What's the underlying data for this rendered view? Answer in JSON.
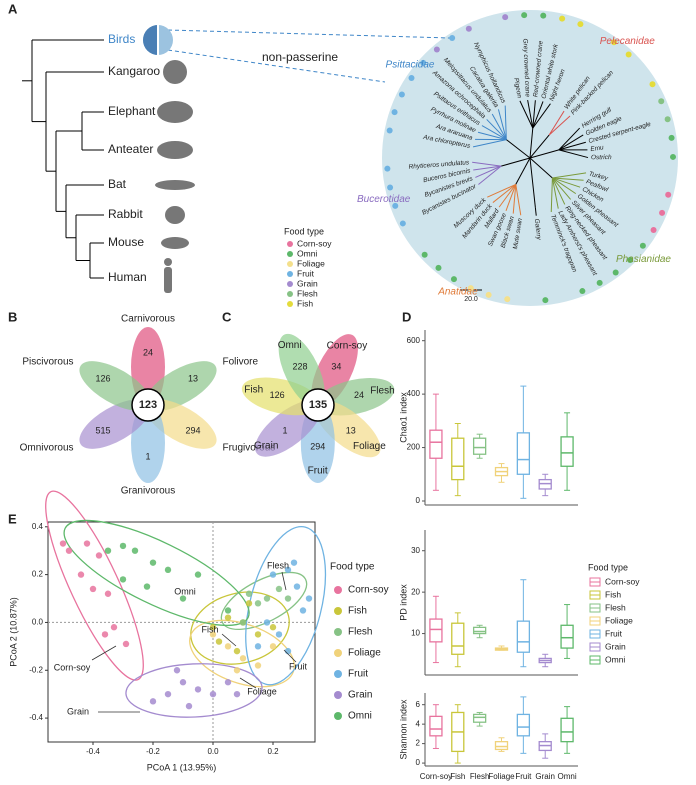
{
  "panel_labels": [
    "A",
    "B",
    "C",
    "D",
    "E"
  ],
  "tree": {
    "taxa": [
      "Birds",
      "Kangaroo",
      "Elephant",
      "Anteater",
      "Bat",
      "Rabbit",
      "Mouse",
      "Human"
    ],
    "callout": "non-passerine",
    "scale": "20.0",
    "legend": {
      "title": "Food type",
      "items": [
        {
          "label": "Corn-soy",
          "color": "#e8739e"
        },
        {
          "label": "Omni",
          "color": "#5db86a"
        },
        {
          "label": "Foliage",
          "color": "#f4e08c"
        },
        {
          "label": "Fruit",
          "color": "#6fb3e2"
        },
        {
          "label": "Grain",
          "color": "#a48bcf"
        },
        {
          "label": "Flesh",
          "color": "#86c285"
        },
        {
          "label": "Fish",
          "color": "#e4dc3c"
        }
      ]
    },
    "groups": [
      {
        "leaves": [
          {
            "name": "Pigeon",
            "food": "Grain"
          },
          {
            "name": "Grey crowned crane",
            "food": "Omni"
          },
          {
            "name": "Red-crowned crane",
            "food": "Omni"
          },
          {
            "name": "Oriental white stork",
            "food": "Fish"
          },
          {
            "name": "Night heron",
            "food": "Fish"
          }
        ]
      },
      {
        "label": "Pelecanidae",
        "color": "#d9534f",
        "leaves": [
          {
            "name": "White pelican",
            "food": "Fish"
          },
          {
            "name": "Pink-backed pelican",
            "food": "Fish"
          }
        ]
      },
      {
        "leaves": [
          {
            "name": "Herring gull",
            "food": "Fish"
          },
          {
            "name": "Golden eagle",
            "food": "Flesh"
          },
          {
            "name": "Crested serpent-eagle",
            "food": "Flesh"
          },
          {
            "name": "Emu",
            "food": "Omni"
          },
          {
            "name": "Ostrich",
            "food": "Omni"
          }
        ]
      },
      {
        "label": "Phasianidae",
        "color": "#7a9a3a",
        "leaves": [
          {
            "name": "Turkey",
            "food": "Corn-soy"
          },
          {
            "name": "Peafowl",
            "food": "Corn-soy"
          },
          {
            "name": "Chicken",
            "food": "Corn-soy"
          },
          {
            "name": "Golden pheasant",
            "food": "Omni"
          },
          {
            "name": "Silver pheasant",
            "food": "Omni"
          },
          {
            "name": "Ring-necked pheasant",
            "food": "Omni"
          },
          {
            "name": "Lady Amherst's pheasant",
            "food": "Omni"
          },
          {
            "name": "Temminck's tragopan",
            "food": "Omni"
          }
        ]
      },
      {
        "leaves": [
          {
            "name": "Galerry",
            "food": "Omni"
          }
        ]
      },
      {
        "label": "Anatidae",
        "color": "#e07b39",
        "leaves": [
          {
            "name": "Mute swan",
            "food": "Foliage"
          },
          {
            "name": "Black swan",
            "food": "Foliage"
          },
          {
            "name": "Swan goose",
            "food": "Foliage"
          },
          {
            "name": "Mallard",
            "food": "Omni"
          },
          {
            "name": "Mandarin duck",
            "food": "Omni"
          },
          {
            "name": "Muscovy duck",
            "food": "Omni"
          }
        ]
      },
      {
        "label": "Bucerotidae",
        "color": "#8a6cc0",
        "leaves": [
          {
            "name": "Bycanistes bucinator",
            "food": "Fruit"
          },
          {
            "name": "Bycanistes brevis",
            "food": "Fruit"
          },
          {
            "name": "Buceros bicornis",
            "food": "Fruit"
          },
          {
            "name": "Rhyticeros undulatus",
            "food": "Fruit"
          }
        ]
      },
      {
        "label": "Psittacidae",
        "color": "#3f86c8",
        "leaves": [
          {
            "name": "Ara chloropterus",
            "food": "Fruit"
          },
          {
            "name": "Ara araruana",
            "food": "Fruit"
          },
          {
            "name": "Pyrrhura molinae",
            "food": "Fruit"
          },
          {
            "name": "Psittacus erithacus",
            "food": "Fruit"
          },
          {
            "name": "Amazona ochrocephala",
            "food": "Fruit"
          },
          {
            "name": "Melopsittacus undulatus",
            "food": "Grain"
          },
          {
            "name": "Cacatua galerita",
            "food": "Fruit"
          },
          {
            "name": "Nymphicus hollandicus",
            "food": "Grain"
          }
        ]
      }
    ]
  },
  "venn_b": {
    "center": 123,
    "petals": [
      {
        "label": "Carnivorous",
        "value": 24,
        "color": "#e0507e"
      },
      {
        "label": "Folivore",
        "value": 13,
        "color": "#8cc48a"
      },
      {
        "label": "Frugivorous",
        "value": 294,
        "color": "#f4dc8a"
      },
      {
        "label": "Granivorous",
        "value": 1,
        "color": "#8fc0e4"
      },
      {
        "label": "Omnivorous",
        "value": 515,
        "color": "#a890d0"
      },
      {
        "label": "Piscivorous",
        "value": 126,
        "color": "#8cc48a"
      }
    ]
  },
  "venn_c": {
    "center": 135,
    "petals": [
      {
        "label": "Corn-soy",
        "value": 34,
        "color": "#e0507e"
      },
      {
        "label": "Flesh",
        "value": 24,
        "color": "#8cc48a"
      },
      {
        "label": "Foliage",
        "value": 13,
        "color": "#f4dc8a"
      },
      {
        "label": "Fruit",
        "value": 294,
        "color": "#8fc0e4"
      },
      {
        "label": "Grain",
        "value": 1,
        "color": "#a890d0"
      },
      {
        "label": "Fish",
        "value": 126,
        "color": "#e4e06a"
      },
      {
        "label": "Omni",
        "value": 228,
        "color": "#8fcf8f"
      }
    ]
  },
  "chart_data": [
    {
      "type": "box",
      "y_label": "Chao1 index",
      "ylim": [
        -15,
        640
      ],
      "yticks": [
        0,
        200,
        400,
        600
      ],
      "boxes": [
        {
          "min": 40,
          "q1": 160,
          "median": 220,
          "q3": 265,
          "max": 400
        },
        {
          "min": 20,
          "q1": 80,
          "median": 130,
          "q3": 235,
          "max": 290
        },
        {
          "min": 160,
          "q1": 175,
          "median": 200,
          "q3": 235,
          "max": 250
        },
        {
          "min": 70,
          "q1": 95,
          "median": 110,
          "q3": 125,
          "max": 140
        },
        {
          "min": 10,
          "q1": 100,
          "median": 155,
          "q3": 255,
          "max": 430
        },
        {
          "min": 20,
          "q1": 45,
          "median": 65,
          "q3": 80,
          "max": 100
        },
        {
          "min": 40,
          "q1": 130,
          "median": 180,
          "q3": 240,
          "max": 330
        }
      ]
    },
    {
      "type": "box",
      "y_label": "PD index",
      "ylim": [
        0,
        35
      ],
      "yticks": [
        10,
        20,
        30
      ],
      "boxes": [
        {
          "min": 3,
          "q1": 8,
          "median": 11,
          "q3": 13.5,
          "max": 19
        },
        {
          "min": 2,
          "q1": 5,
          "median": 7,
          "q3": 12.5,
          "max": 15
        },
        {
          "min": 9,
          "q1": 10,
          "median": 10.5,
          "q3": 11.5,
          "max": 12
        },
        {
          "min": 6,
          "q1": 6,
          "median": 6.3,
          "q3": 6.5,
          "max": 7
        },
        {
          "min": 2,
          "q1": 5.5,
          "median": 8,
          "q3": 13,
          "max": 23
        },
        {
          "min": 2,
          "q1": 3,
          "median": 3.5,
          "q3": 4,
          "max": 5
        },
        {
          "min": 4,
          "q1": 6.5,
          "median": 9,
          "q3": 12,
          "max": 17
        }
      ]
    },
    {
      "type": "box",
      "y_label": "Shannon index",
      "ylim": [
        -0.3,
        7.2
      ],
      "yticks": [
        0,
        2,
        4,
        6
      ],
      "categories": [
        "Corn-soy",
        "Fish",
        "Flesh",
        "Foliage",
        "Fruit",
        "Grain",
        "Omni"
      ],
      "colors": [
        "#e8739e",
        "#c9c63a",
        "#86c285",
        "#f0d27a",
        "#6fb3e2",
        "#a48bcf",
        "#5db86a"
      ],
      "legend_title": "Food type",
      "boxes": [
        {
          "min": 1.5,
          "q1": 2.8,
          "median": 3.5,
          "q3": 4.8,
          "max": 6
        },
        {
          "min": 0,
          "q1": 1.2,
          "median": 3.2,
          "q3": 5.2,
          "max": 6
        },
        {
          "min": 3.8,
          "q1": 4.2,
          "median": 4.7,
          "q3": 5,
          "max": 5.2
        },
        {
          "min": 1.2,
          "q1": 1.4,
          "median": 1.7,
          "q3": 2.2,
          "max": 2.6
        },
        {
          "min": 1,
          "q1": 2.8,
          "median": 3.7,
          "q3": 5,
          "max": 6.8
        },
        {
          "min": 0.5,
          "q1": 1.3,
          "median": 1.8,
          "q3": 2.2,
          "max": 3
        },
        {
          "min": 1,
          "q1": 2.2,
          "median": 3.2,
          "q3": 4.6,
          "max": 5.8
        }
      ]
    },
    {
      "type": "scatter",
      "x_label": "PCoA 1 (13.95%)",
      "y_label": "PCoA 2 (10.87%)",
      "xlim": [
        -0.55,
        0.34
      ],
      "ylim": [
        -0.5,
        0.42
      ],
      "xticks": [
        -0.4,
        -0.2,
        {
          "value": 0,
          "label": "0.0"
        },
        0.2
      ],
      "yticks": [
        -0.4,
        -0.2,
        {
          "value": 0,
          "label": "0.0"
        },
        0.2,
        0.4
      ],
      "legend_title": "Food type",
      "annotations": [
        "Omni",
        "Flesh",
        "Fish",
        "Fruit",
        "Corn-soy",
        "Grain",
        "Foliage"
      ],
      "series": [
        {
          "name": "Corn-soy",
          "color": "#e8739e",
          "x": [
            -0.5,
            -0.48,
            -0.42,
            -0.38,
            -0.44,
            -0.35,
            -0.33,
            -0.29,
            -0.36,
            -0.4
          ],
          "values": [
            0.33,
            0.3,
            0.33,
            0.28,
            0.2,
            0.12,
            -0.02,
            -0.09,
            -0.05,
            0.14
          ]
        },
        {
          "name": "Fish",
          "color": "#c9c63a",
          "x": [
            0.0,
            0.05,
            0.1,
            0.15,
            0.08,
            0.12,
            0.2,
            0.02
          ],
          "values": [
            -0.02,
            0.02,
            0.0,
            -0.05,
            -0.12,
            0.08,
            -0.02,
            -0.08
          ]
        },
        {
          "name": "Flesh",
          "color": "#86c285",
          "x": [
            0.12,
            0.15,
            0.18,
            0.22,
            0.25,
            0.1
          ],
          "values": [
            0.12,
            0.08,
            0.1,
            0.14,
            0.1,
            0.0
          ]
        },
        {
          "name": "Foliage",
          "color": "#f0d27a",
          "x": [
            0.05,
            0.1,
            0.15,
            0.2,
            0.08,
            0.0
          ],
          "values": [
            -0.1,
            -0.15,
            -0.18,
            -0.1,
            -0.2,
            -0.05
          ]
        },
        {
          "name": "Fruit",
          "color": "#6fb3e2",
          "x": [
            0.2,
            0.25,
            0.28,
            0.3,
            0.22,
            0.15,
            0.25,
            0.32,
            0.18,
            0.27
          ],
          "values": [
            0.2,
            0.22,
            0.15,
            0.05,
            -0.05,
            -0.1,
            -0.12,
            0.1,
            0.0,
            0.25
          ]
        },
        {
          "name": "Grain",
          "color": "#a48bcf",
          "x": [
            -0.2,
            -0.15,
            -0.1,
            -0.05,
            0.0,
            0.05,
            -0.12,
            0.08,
            -0.08
          ],
          "values": [
            -0.33,
            -0.3,
            -0.25,
            -0.28,
            -0.3,
            -0.25,
            -0.2,
            -0.3,
            -0.35
          ]
        },
        {
          "name": "Omni",
          "color": "#5db86a",
          "x": [
            -0.35,
            -0.3,
            -0.26,
            -0.2,
            -0.15,
            -0.22,
            -0.1,
            -0.05,
            -0.3,
            0.05
          ],
          "values": [
            0.3,
            0.32,
            0.3,
            0.25,
            0.22,
            0.15,
            0.1,
            0.2,
            0.18,
            0.05
          ]
        }
      ]
    }
  ]
}
